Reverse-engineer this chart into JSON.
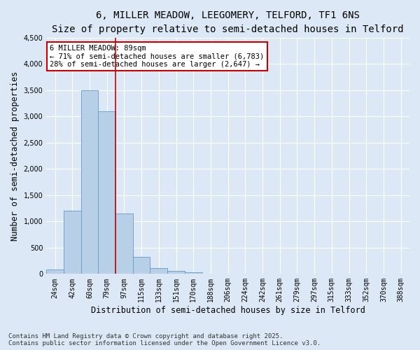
{
  "title_line1": "6, MILLER MEADOW, LEEGOMERY, TELFORD, TF1 6NS",
  "title_line2": "Size of property relative to semi-detached houses in Telford",
  "xlabel": "Distribution of semi-detached houses by size in Telford",
  "ylabel": "Number of semi-detached properties",
  "footnote": "Contains HM Land Registry data © Crown copyright and database right 2025.\nContains public sector information licensed under the Open Government Licence v3.0.",
  "categories": [
    "24sqm",
    "42sqm",
    "60sqm",
    "79sqm",
    "97sqm",
    "115sqm",
    "133sqm",
    "151sqm",
    "170sqm",
    "188sqm",
    "206sqm",
    "224sqm",
    "242sqm",
    "261sqm",
    "279sqm",
    "297sqm",
    "315sqm",
    "333sqm",
    "352sqm",
    "370sqm",
    "388sqm"
  ],
  "values": [
    90,
    1200,
    3500,
    3100,
    1150,
    330,
    110,
    55,
    30,
    5,
    3,
    2,
    1,
    0,
    0,
    0,
    0,
    0,
    0,
    0,
    0
  ],
  "bar_color": "#b8cfe8",
  "bar_edge_color": "#6699cc",
  "vline_color": "#cc0000",
  "ylim": [
    0,
    4500
  ],
  "yticks": [
    0,
    500,
    1000,
    1500,
    2000,
    2500,
    3000,
    3500,
    4000,
    4500
  ],
  "bg_color": "#dce8f5",
  "plot_bg_color": "#dce8f5",
  "annotation_title": "6 MILLER MEADOW: 89sqm",
  "annotation_line1": "← 71% of semi-detached houses are smaller (6,783)",
  "annotation_line2": "28% of semi-detached houses are larger (2,647) →",
  "annotation_box_color": "#ffffff",
  "annotation_box_edge_color": "#cc0000",
  "title_fontsize": 10,
  "subtitle_fontsize": 9,
  "tick_fontsize": 7,
  "label_fontsize": 8.5,
  "annotation_fontsize": 7.5,
  "footnote_fontsize": 6.5
}
